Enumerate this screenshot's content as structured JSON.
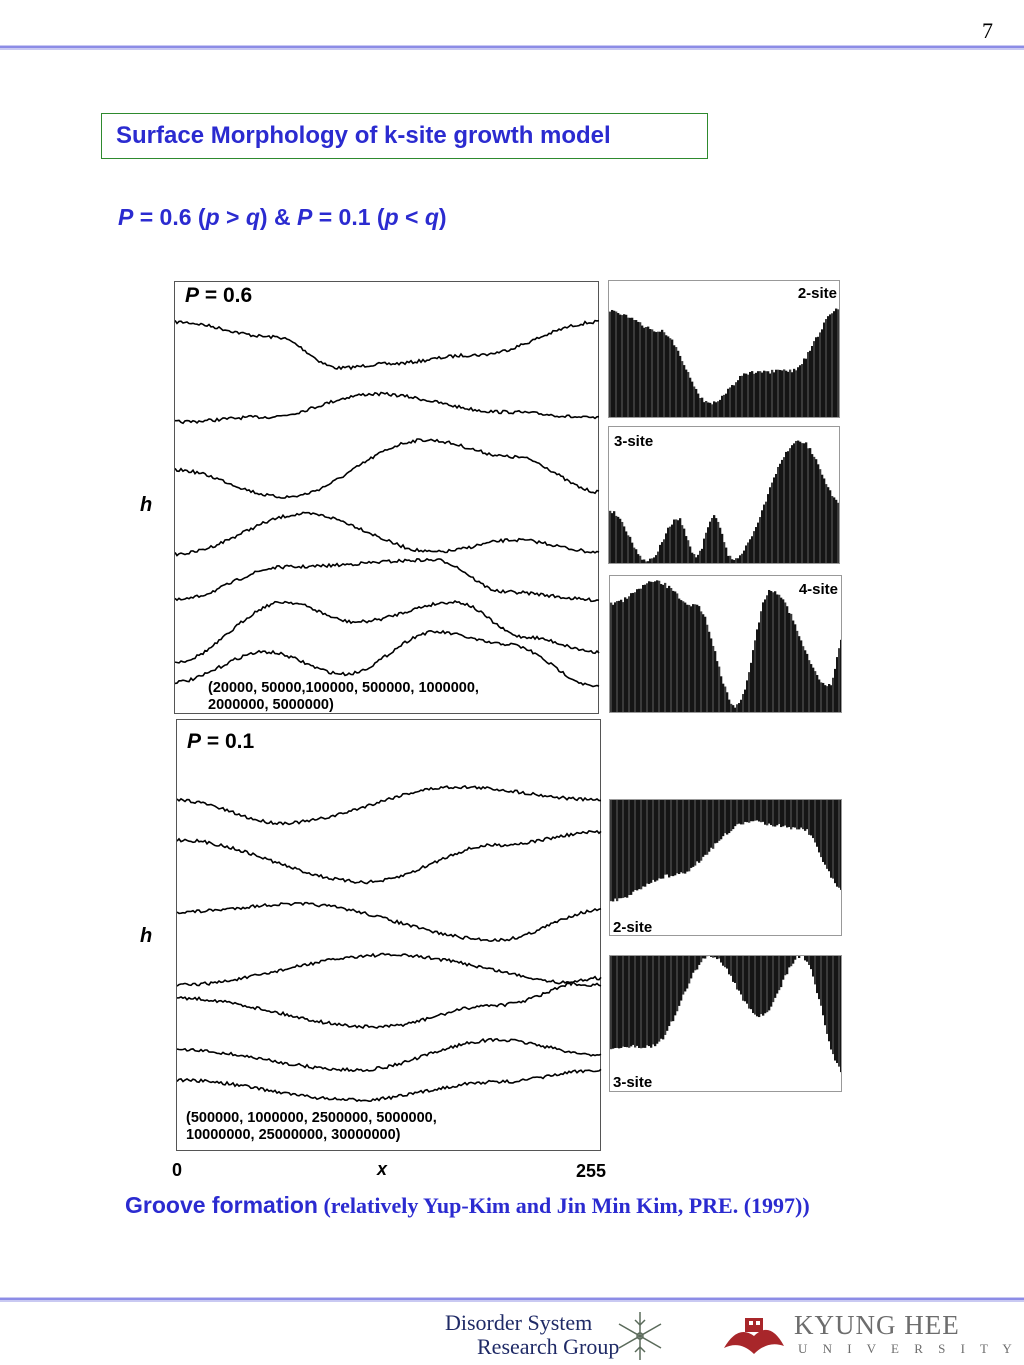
{
  "page_number": "7",
  "title": "Surface Morphology of k-site growth model",
  "subtitle": {
    "p1_var": "P",
    "p1_rest": " = 0.6 (",
    "p1_cond_a": "p",
    "p1_cond_op": " > ",
    "p1_cond_b": "q",
    "p1_close": ") & ",
    "p2_var": "P",
    "p2_rest": " = 0.1 (",
    "p2_cond_a": "p",
    "p2_cond_op": " < ",
    "p2_cond_b": "q",
    "p2_close": ")"
  },
  "panel_top": {
    "label_var": "P",
    "label_value": " = 0.6",
    "times_line1": "(20000, 50000,100000, 500000, 1000000,",
    "times_line2": "2000000, 5000000)",
    "ylabel": "h"
  },
  "panel_bottom": {
    "label_var": "P",
    "label_value": " = 0.1",
    "times_line1": "(500000, 1000000, 2500000, 5000000,",
    "times_line2": "10000000, 25000000, 30000000)",
    "ylabel": "h"
  },
  "x_axis": {
    "min": "0",
    "label": "x",
    "max": "255"
  },
  "thumbnails_top": [
    {
      "label": "2-site"
    },
    {
      "label": "3-site"
    },
    {
      "label": "4-site"
    }
  ],
  "thumbnails_bottom": [
    {
      "label": "2-site"
    },
    {
      "label": "3-site"
    }
  ],
  "caption": {
    "main": "Groove formation",
    "ref": " (relatively Yup-Kim and Jin Min Kim, PRE. (1997))"
  },
  "footer": {
    "dsrg_line1": "Disorder System",
    "dsrg_line2": "Research Group",
    "khu_line1": "KYUNG HEE",
    "khu_line2": "U N I V E R S I T Y"
  },
  "colors": {
    "accent": "#2b2bd0",
    "title_border": "#2e8a2e",
    "rule": "#8c8ce6"
  }
}
